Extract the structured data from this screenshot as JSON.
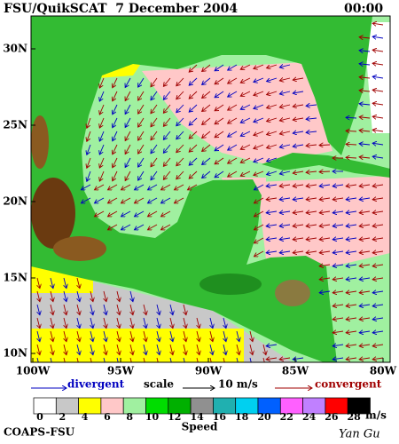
{
  "header": {
    "title": "FSU/QuikSCAT  7 December 2004",
    "time": "00:00"
  },
  "map": {
    "lat_labels": [
      "30N",
      "25N",
      "20N",
      "15N",
      "10N"
    ],
    "lon_labels": [
      "100W",
      "95W",
      "90W",
      "85W",
      "80W"
    ]
  },
  "legend": {
    "divergent": "divergent",
    "scale": "scale",
    "scale_value": "10 m/s",
    "convergent": "convergent"
  },
  "colorbar": {
    "ticks": [
      0,
      2,
      4,
      6,
      8,
      10,
      12,
      14,
      16,
      18,
      20,
      22,
      24,
      26,
      28
    ],
    "unit": "m/s",
    "title": "Speed",
    "colors": [
      "#ffffff",
      "#c8c8c8",
      "#ffff00",
      "#ffc8c8",
      "#a0f0a0",
      "#00dd00",
      "#00b000",
      "#909090",
      "#20b0b0",
      "#00d0f0",
      "#0060ff",
      "#ff60ff",
      "#c080ff",
      "#ff0000",
      "#000000"
    ]
  },
  "footer": {
    "left": "COAPS-FSU",
    "right": "Yan Gu"
  }
}
